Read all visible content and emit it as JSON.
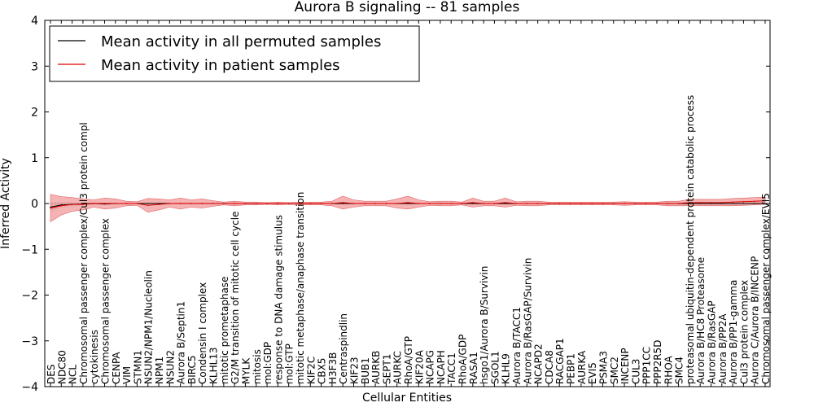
{
  "chart_data": {
    "type": "line",
    "title": "Aurora B signaling -- 81 samples",
    "xlabel": "Cellular Entities",
    "ylabel": "Inferred Activity",
    "ylim": [
      -4,
      4
    ],
    "yticks": [
      "4",
      "3",
      "2",
      "1",
      "0",
      "−1",
      "−2",
      "−3",
      "−4"
    ],
    "grid": false,
    "legend_position": "top-left",
    "categories": [
      "DES",
      "NDC80",
      "NCL",
      "Chromosomal passenger complex/Cul3 protein compl",
      "cytokinesis",
      "Chromosomal passenger complex",
      "CENPA",
      "VIM",
      "STMN1",
      "NSUN2/NPM1/Nucleolin",
      "NPM1",
      "NSUN2",
      "Aurora B/Septin1",
      "BIRC5",
      "Condensin I complex",
      "KLHL13",
      "mitotic prometaphase",
      "G2/M transition of mitotic cell cycle",
      "MYLK",
      "mitosis",
      "mol:GDP",
      "response to DNA damage stimulus",
      "mol:GTP",
      "mitotic metaphase/anaphase transition",
      "KIF2C",
      "CBX5",
      "H3F3B",
      "Centraspindlin",
      "KIF23",
      "BUB1",
      "AURKB",
      "SEPT1",
      "AURKC",
      "RhoA/GTP",
      "KIF20A",
      "NCAPG",
      "NCAPH",
      "TACC1",
      "RhoA/GDP",
      "RASA1",
      "hsgo1/Aurora B/Survivin",
      "SGOL1",
      "KLHL9",
      "Aurora B/TACC1",
      "Aurora B/RasGAP/Survivin",
      "NCAPD2",
      "CDCA8",
      "RACGAP1",
      "PEBP1",
      "AURKA",
      "EVI5",
      "PSMA3",
      "SMC2",
      "INCENP",
      "CUL3",
      "PPP1CC",
      "PPP2R5D",
      "RHOA",
      "SMC4",
      "proteasomal ubiquitin-dependent protein catabolic process",
      "Aurora B/HC8 Proteasome",
      "Aurora B/RasGAP",
      "Aurora B/PP2A",
      "Aurora B/PP1-gamma",
      "Cul3 protein complex",
      "Aurora C/Aurora B/INCENP",
      "Chromosomal passenger complex/EVI5"
    ],
    "series": [
      {
        "name": "Mean activity in all permuted samples",
        "color": "#000000",
        "band_color": "#cccccc",
        "values": [
          -0.08,
          -0.03,
          -0.02,
          -0.01,
          0.0,
          -0.01,
          0.0,
          0.0,
          0.0,
          0.0,
          0.0,
          0.0,
          0.0,
          0.0,
          0.0,
          0.0,
          0.0,
          0.0,
          0.0,
          0.0,
          0.0,
          0.0,
          0.0,
          0.0,
          0.0,
          0.0,
          0.0,
          0.0,
          0.0,
          0.0,
          0.0,
          0.0,
          0.0,
          0.0,
          0.0,
          0.0,
          0.0,
          0.0,
          0.0,
          0.0,
          0.0,
          0.0,
          0.0,
          0.0,
          0.0,
          0.0,
          0.0,
          0.0,
          0.0,
          0.0,
          0.0,
          0.0,
          0.0,
          0.0,
          0.0,
          0.0,
          0.0,
          0.0,
          0.0,
          0.0,
          0.0,
          0.0,
          0.0,
          0.0,
          0.0,
          0.0,
          0.0
        ],
        "spread": [
          0.1,
          0.06,
          0.05,
          0.03,
          0.02,
          0.02,
          0.02,
          0.02,
          0.02,
          0.02,
          0.02,
          0.02,
          0.02,
          0.02,
          0.02,
          0.02,
          0.02,
          0.02,
          0.02,
          0.02,
          0.02,
          0.02,
          0.02,
          0.02,
          0.02,
          0.02,
          0.02,
          0.02,
          0.02,
          0.02,
          0.02,
          0.02,
          0.02,
          0.02,
          0.02,
          0.02,
          0.02,
          0.02,
          0.02,
          0.02,
          0.02,
          0.02,
          0.02,
          0.02,
          0.02,
          0.02,
          0.02,
          0.02,
          0.02,
          0.02,
          0.02,
          0.02,
          0.02,
          0.02,
          0.02,
          0.02,
          0.02,
          0.03,
          0.03,
          0.03,
          0.03,
          0.03,
          0.03,
          0.03,
          0.03,
          0.03,
          0.03
        ]
      },
      {
        "name": "Mean activity in patient samples",
        "color": "#dd0000",
        "band_color": "#f08080",
        "values": [
          -0.1,
          -0.05,
          -0.02,
          -0.02,
          0.0,
          0.0,
          0.0,
          0.0,
          0.0,
          -0.04,
          -0.02,
          0.0,
          0.0,
          0.0,
          0.0,
          0.0,
          0.0,
          0.0,
          0.0,
          0.0,
          0.0,
          0.0,
          0.0,
          0.0,
          0.0,
          0.0,
          0.0,
          0.02,
          0.0,
          0.0,
          0.0,
          0.0,
          0.0,
          0.02,
          0.0,
          0.0,
          0.0,
          0.0,
          0.0,
          0.02,
          0.0,
          0.0,
          0.02,
          0.0,
          0.0,
          0.0,
          0.0,
          0.0,
          0.0,
          0.0,
          0.0,
          0.0,
          0.0,
          0.0,
          0.0,
          0.0,
          0.0,
          0.0,
          0.0,
          0.02,
          0.02,
          0.02,
          0.02,
          0.03,
          0.04,
          0.05,
          0.06
        ],
        "spread": [
          0.3,
          0.2,
          0.15,
          0.12,
          0.08,
          0.12,
          0.1,
          0.05,
          0.04,
          0.15,
          0.12,
          0.08,
          0.12,
          0.08,
          0.1,
          0.06,
          0.03,
          0.05,
          0.03,
          0.03,
          0.02,
          0.03,
          0.02,
          0.03,
          0.03,
          0.03,
          0.05,
          0.14,
          0.08,
          0.05,
          0.05,
          0.05,
          0.1,
          0.14,
          0.08,
          0.04,
          0.05,
          0.05,
          0.03,
          0.1,
          0.05,
          0.05,
          0.1,
          0.04,
          0.05,
          0.05,
          0.03,
          0.03,
          0.03,
          0.03,
          0.03,
          0.03,
          0.03,
          0.04,
          0.03,
          0.03,
          0.03,
          0.05,
          0.05,
          0.07,
          0.07,
          0.07,
          0.07,
          0.08,
          0.08,
          0.08,
          0.08
        ]
      }
    ]
  }
}
